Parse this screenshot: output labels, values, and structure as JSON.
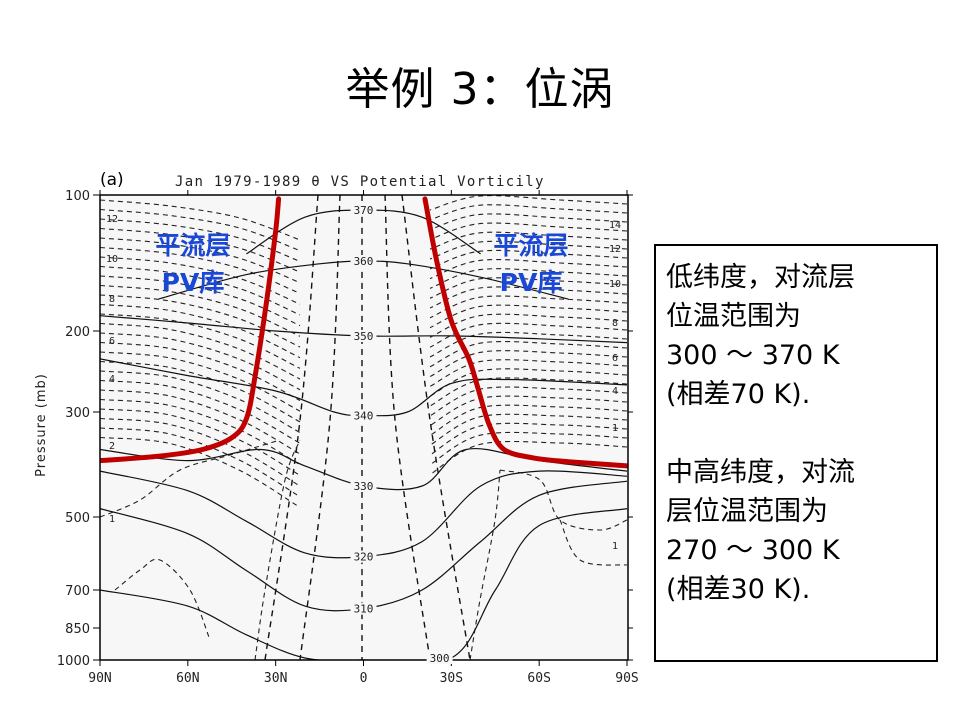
{
  "slide": {
    "title": "举例 3：位涡"
  },
  "info_box": {
    "low_lat": {
      "line1": "低纬度，对流层",
      "line2": "位温范围为",
      "line3": "300 ～ 370 K",
      "line4": "(相差70 K)."
    },
    "mid_high_lat": {
      "line1": "中高纬度，对流",
      "line2": "层位温范围为",
      "line3": "270 ～ 300 K",
      "line4": "(相差30 K)."
    }
  },
  "chart_data": {
    "type": "line",
    "panel_label": "(a)",
    "title": "Jan 1979-1989 θ VS Potential Vorticily",
    "xlabel": "",
    "ylabel": "Pressure (mb)",
    "x_ticks": [
      "90N",
      "60N",
      "30N",
      "0",
      "30S",
      "60S",
      "90S"
    ],
    "x_values": [
      90,
      60,
      30,
      0,
      -30,
      -60,
      -90
    ],
    "y_ticks": [
      "100",
      "200",
      "300",
      "500",
      "700",
      "850",
      "1000"
    ],
    "y_values": [
      100,
      200,
      300,
      500,
      700,
      850,
      1000
    ],
    "y_scale": "log",
    "y_inverted": true,
    "xlim": [
      90,
      -90
    ],
    "ylim": [
      1000,
      100
    ],
    "annotations": [
      {
        "text_line1": "平流层",
        "text_line2": "PV库",
        "color": "#1a47d6",
        "lat": 62,
        "p": 150
      },
      {
        "text_line1": "平流层",
        "text_line2": "PV库",
        "color": "#1a47d6",
        "lat": -62,
        "p": 150
      }
    ],
    "tropopause": {
      "color": "#c00000",
      "series": [
        {
          "name": "NH tropopause",
          "points": [
            [
              90,
              380
            ],
            [
              70,
              372
            ],
            [
              55,
              360
            ],
            [
              45,
              340
            ],
            [
              40,
              310
            ],
            [
              37,
              250
            ],
            [
              33,
              170
            ],
            [
              30,
              120
            ],
            [
              29,
              102
            ]
          ]
        },
        {
          "name": "SH tropopause",
          "points": [
            [
              -21,
              102
            ],
            [
              -25,
              140
            ],
            [
              -30,
              190
            ],
            [
              -36,
              230
            ],
            [
              -39,
              265
            ],
            [
              -43,
              320
            ],
            [
              -48,
              360
            ],
            [
              -58,
              375
            ],
            [
              -70,
              382
            ],
            [
              -90,
              390
            ]
          ]
        }
      ]
    },
    "theta_contours": {
      "style": "solid",
      "label_unit": "K",
      "series": [
        {
          "label": "370",
          "points": [
            [
              40,
              135
            ],
            [
              20,
              112
            ],
            [
              0,
              108
            ],
            [
              -20,
              112
            ],
            [
              -40,
              135
            ]
          ]
        },
        {
          "label": "360",
          "points": [
            [
              70,
              170
            ],
            [
              40,
              150
            ],
            [
              15,
              142
            ],
            [
              0,
              140
            ],
            [
              -15,
              142
            ],
            [
              -40,
              152
            ],
            [
              -70,
              170
            ]
          ]
        },
        {
          "label": "350",
          "points": [
            [
              90,
              185
            ],
            [
              60,
              192
            ],
            [
              30,
              200
            ],
            [
              0,
              205
            ],
            [
              -30,
              205
            ],
            [
              -60,
              208
            ],
            [
              -90,
              212
            ]
          ]
        },
        {
          "label": "340",
          "points": [
            [
              90,
              230
            ],
            [
              60,
              250
            ],
            [
              30,
              270
            ],
            [
              10,
              300
            ],
            [
              0,
              305
            ],
            [
              -15,
              300
            ],
            [
              -30,
              260
            ],
            [
              -50,
              255
            ],
            [
              -90,
              262
            ]
          ]
        },
        {
          "label": "330",
          "points": [
            [
              90,
              360
            ],
            [
              60,
              380
            ],
            [
              35,
              360
            ],
            [
              20,
              390
            ],
            [
              0,
              430
            ],
            [
              -20,
              430
            ],
            [
              -35,
              360
            ],
            [
              -60,
              380
            ],
            [
              -90,
              400
            ]
          ]
        },
        {
          "label": "320",
          "points": [
            [
              90,
              400
            ],
            [
              60,
              440
            ],
            [
              40,
              510
            ],
            [
              20,
              590
            ],
            [
              0,
              600
            ],
            [
              -20,
              560
            ],
            [
              -40,
              430
            ],
            [
              -60,
              400
            ],
            [
              -90,
              410
            ]
          ]
        },
        {
          "label": "310",
          "points": [
            [
              90,
              480
            ],
            [
              60,
              540
            ],
            [
              40,
              640
            ],
            [
              20,
              760
            ],
            [
              0,
              770
            ],
            [
              -20,
              700
            ],
            [
              -40,
              560
            ],
            [
              -60,
              450
            ],
            [
              -90,
              420
            ]
          ]
        },
        {
          "label": "300",
          "points": [
            [
              90,
              700
            ],
            [
              60,
              760
            ],
            [
              40,
              880
            ],
            [
              20,
              990
            ],
            [
              0,
              1000
            ],
            [
              -30,
              990
            ],
            [
              -45,
              700
            ],
            [
              -60,
              520
            ],
            [
              -90,
              480
            ]
          ]
        }
      ]
    },
    "pv_labels_left": [
      "12",
      "10",
      "8",
      "6",
      "4",
      "2",
      "1"
    ],
    "pv_labels_right": [
      "14",
      "12",
      "10",
      "8",
      "6",
      "4",
      "1",
      "1"
    ],
    "pv_contours": {
      "style": "dashed",
      "label_unit": "PVU"
    }
  }
}
